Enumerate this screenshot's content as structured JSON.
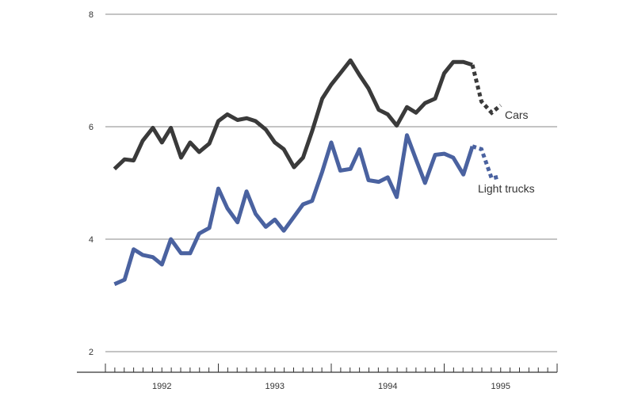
{
  "chart_data": {
    "type": "line",
    "title": "",
    "xlabel": "",
    "ylabel": "",
    "ylim": [
      2,
      8
    ],
    "xlim": [
      1991.5,
      1995.5
    ],
    "y_ticks": [
      "2",
      "4",
      "6",
      "8"
    ],
    "x_ticks": [
      "1992",
      "1993",
      "1994",
      "1995"
    ],
    "grid": "horizontal",
    "colors": {
      "Cars": "#3a3a3a",
      "Light trucks": "#4a62a0"
    },
    "series": [
      {
        "name": "Cars",
        "x": [
          1991.58,
          1991.67,
          1991.75,
          1991.83,
          1991.92,
          1992.0,
          1992.08,
          1992.17,
          1992.25,
          1992.33,
          1992.42,
          1992.5,
          1992.58,
          1992.67,
          1992.75,
          1992.83,
          1992.92,
          1993.0,
          1993.08,
          1993.17,
          1993.25,
          1993.33,
          1993.42,
          1993.5,
          1993.58,
          1993.67,
          1993.75,
          1993.83,
          1993.92,
          1994.0,
          1994.08,
          1994.17,
          1994.25,
          1994.33,
          1994.42,
          1994.5,
          1994.58,
          1994.67,
          1994.75
        ],
        "values": [
          5.25,
          5.42,
          5.4,
          5.75,
          5.98,
          5.72,
          5.98,
          5.45,
          5.72,
          5.55,
          5.7,
          6.1,
          6.22,
          6.12,
          6.15,
          6.1,
          5.95,
          5.72,
          5.6,
          5.28,
          5.45,
          5.92,
          6.5,
          6.75,
          6.95,
          7.18,
          6.92,
          6.68,
          6.3,
          6.22,
          6.02,
          6.35,
          6.25,
          6.42,
          6.5,
          6.95,
          7.15,
          7.15,
          7.1
        ],
        "projection": {
          "x": [
            1994.75,
            1994.83,
            1994.92,
            1995.0
          ],
          "values": [
            7.1,
            6.45,
            6.25,
            6.38
          ]
        }
      },
      {
        "name": "Light trucks",
        "x": [
          1991.58,
          1991.67,
          1991.75,
          1991.83,
          1991.92,
          1992.0,
          1992.08,
          1992.17,
          1992.25,
          1992.33,
          1992.42,
          1992.5,
          1992.58,
          1992.67,
          1992.75,
          1992.83,
          1992.92,
          1993.0,
          1993.08,
          1993.17,
          1993.25,
          1993.33,
          1993.42,
          1993.5,
          1993.58,
          1993.67,
          1993.75,
          1993.83,
          1993.92,
          1994.0,
          1994.08,
          1994.17,
          1994.25,
          1994.33,
          1994.42,
          1994.5,
          1994.58,
          1994.67,
          1994.75
        ],
        "values": [
          3.2,
          3.28,
          3.82,
          3.72,
          3.68,
          3.55,
          4.0,
          3.75,
          3.75,
          4.1,
          4.2,
          4.9,
          4.55,
          4.3,
          4.85,
          4.45,
          4.22,
          4.35,
          4.15,
          4.4,
          4.62,
          4.68,
          5.2,
          5.72,
          5.22,
          5.25,
          5.6,
          5.05,
          5.02,
          5.1,
          4.75,
          5.85,
          5.42,
          5.0,
          5.5,
          5.52,
          5.45,
          5.15,
          5.65
        ],
        "projection": {
          "x": [
            1994.75,
            1994.83,
            1994.92,
            1995.0
          ],
          "values": [
            5.65,
            5.6,
            5.08,
            5.12
          ]
        }
      }
    ]
  }
}
